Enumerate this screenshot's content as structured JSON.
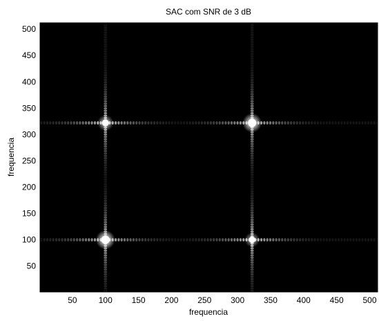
{
  "chart_data": {
    "type": "heatmap",
    "title": "SAC com SNR de 3 dB",
    "xlabel": "frequencia",
    "ylabel": "frequencia",
    "xlim": [
      1,
      512
    ],
    "ylim": [
      1,
      512
    ],
    "xticks": [
      50,
      100,
      150,
      200,
      250,
      300,
      350,
      400,
      450,
      500
    ],
    "yticks": [
      50,
      100,
      150,
      200,
      250,
      300,
      350,
      400,
      450,
      500
    ],
    "colormap": "gray",
    "background_color": "#000000",
    "peaks": [
      {
        "x": 100,
        "y": 100,
        "intensity": 1.0
      },
      {
        "x": 322,
        "y": 322,
        "intensity": 1.0
      },
      {
        "x": 100,
        "y": 322,
        "intensity": 0.75
      },
      {
        "x": 322,
        "y": 100,
        "intensity": 0.65
      }
    ],
    "sidelobe_lines": {
      "x": [
        100,
        322
      ],
      "y": [
        100,
        322
      ]
    }
  }
}
